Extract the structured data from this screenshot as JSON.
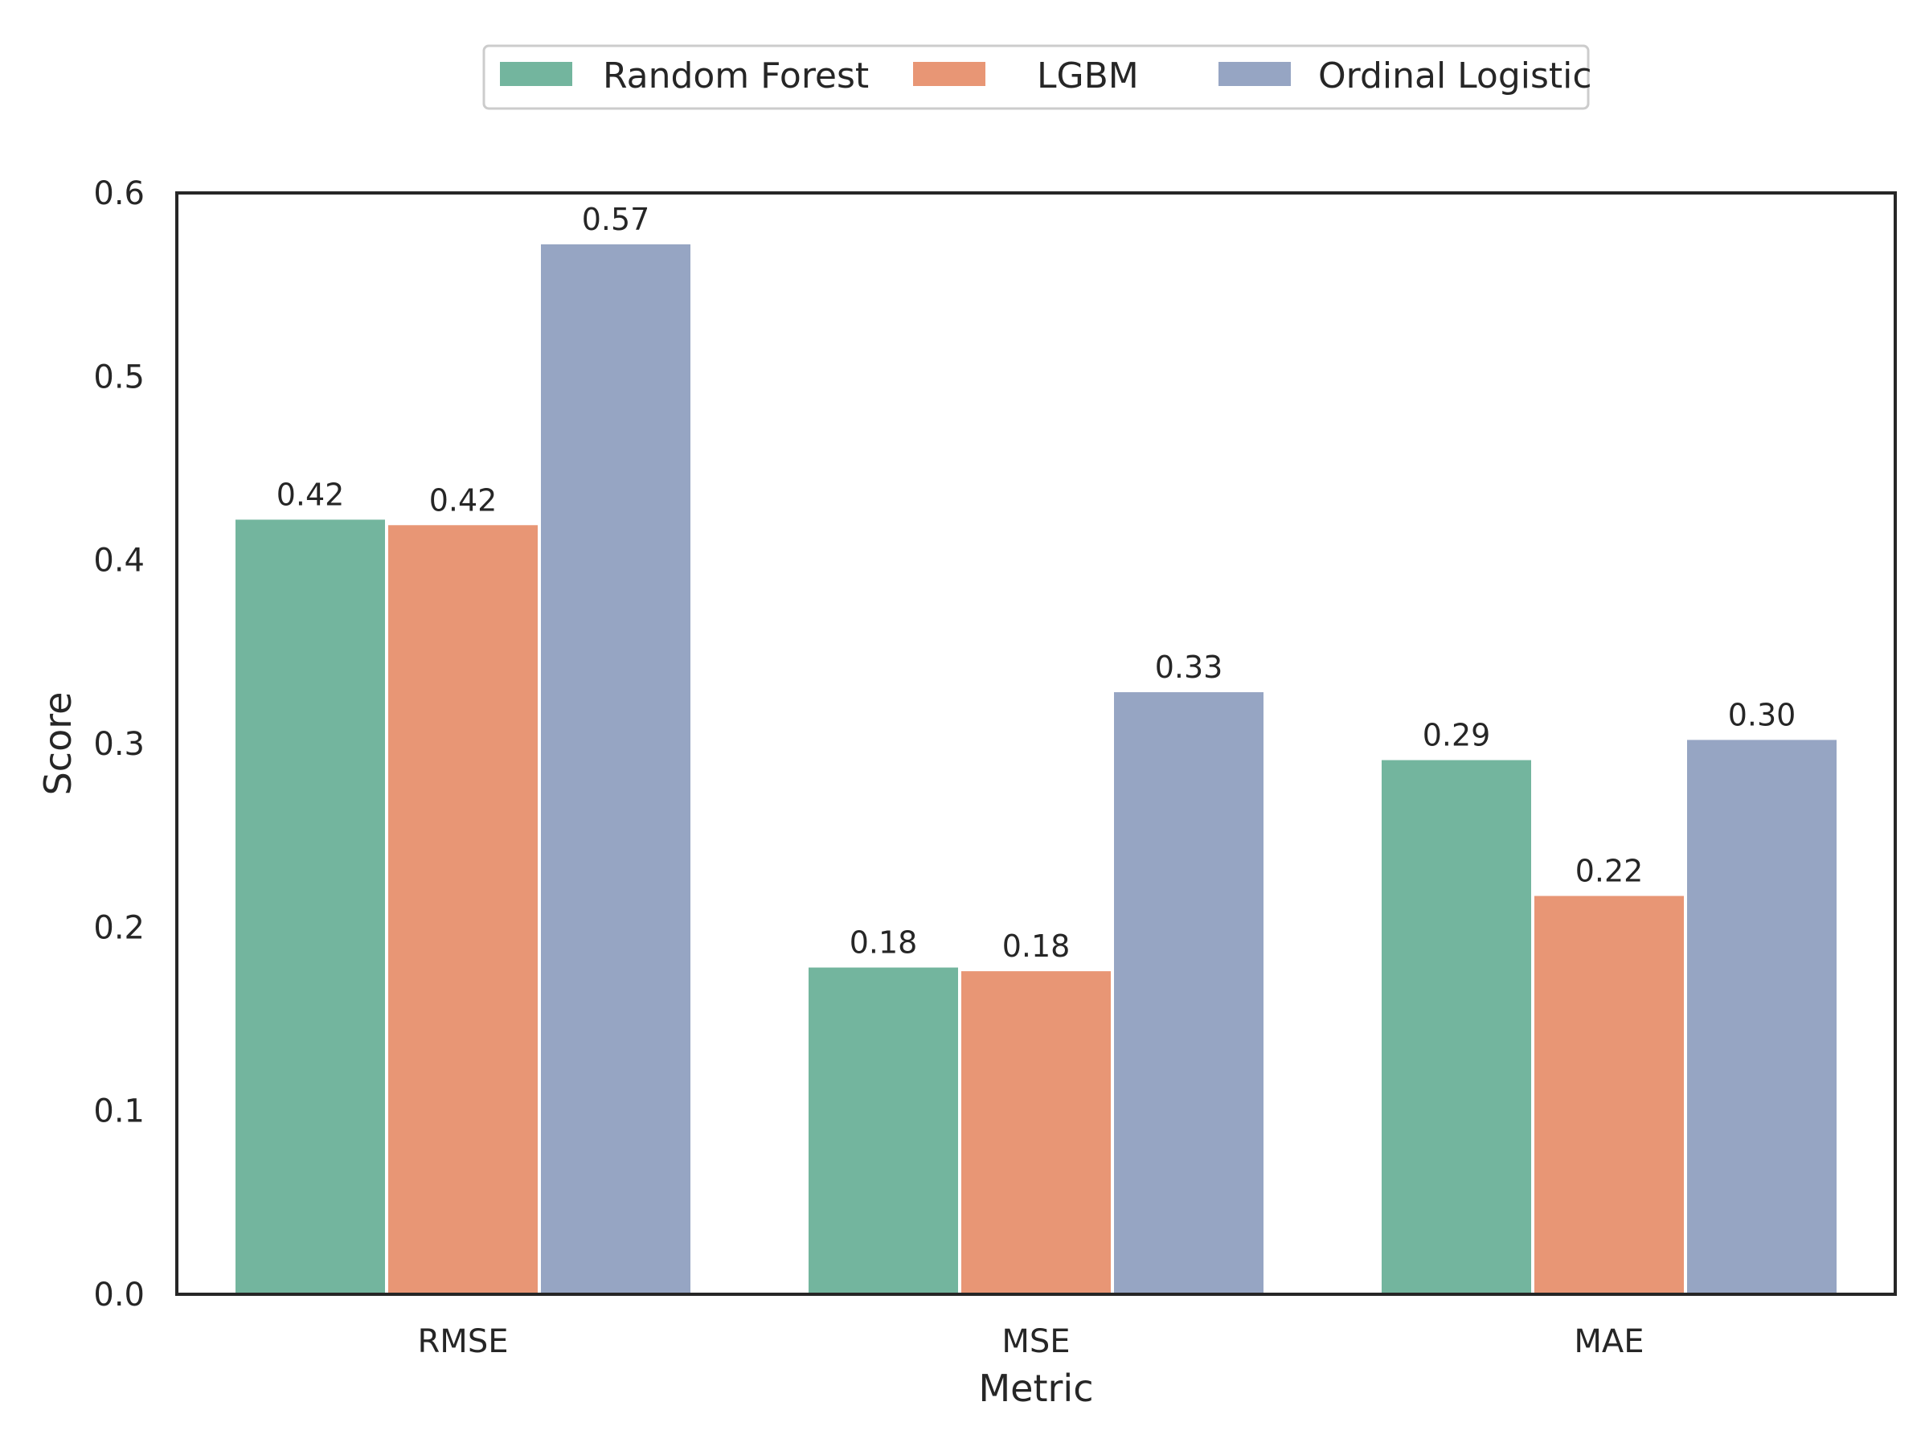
{
  "chart_data": {
    "type": "bar",
    "title": "",
    "xlabel": "Metric",
    "ylabel": "Score",
    "categories": [
      "RMSE",
      "MSE",
      "MAE"
    ],
    "series": [
      {
        "name": "Random Forest",
        "color": "#73b59e",
        "values": [
          0.422,
          0.178,
          0.291
        ],
        "labels": [
          "0.42",
          "0.18",
          "0.29"
        ]
      },
      {
        "name": "LGBM",
        "color": "#e89675",
        "values": [
          0.419,
          0.176,
          0.217
        ],
        "labels": [
          "0.42",
          "0.18",
          "0.22"
        ]
      },
      {
        "name": "Ordinal Logistic",
        "color": "#96a5c3",
        "values": [
          0.572,
          0.328,
          0.302
        ],
        "labels": [
          "0.57",
          "0.33",
          "0.30"
        ]
      }
    ],
    "ylim": [
      0,
      0.6
    ],
    "yticks": [
      "0.0",
      "0.1",
      "0.2",
      "0.3",
      "0.4",
      "0.5",
      "0.6"
    ],
    "grid": false,
    "legend_position": "top-center"
  }
}
